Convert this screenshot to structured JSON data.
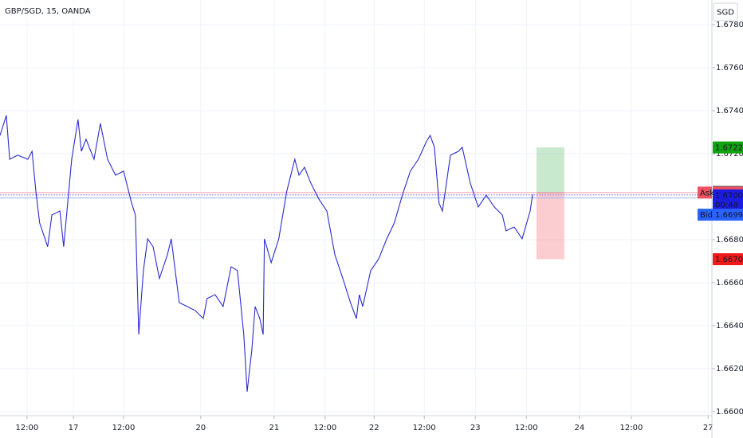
{
  "chart_data": {
    "type": "line",
    "title": "GBP/SGD, 15, OANDA",
    "currency": "SGD",
    "grid": true,
    "xlim": [
      0,
      168.8
    ],
    "xticks": [
      {
        "value": 6.4,
        "label": "12:00"
      },
      {
        "value": 17.4,
        "label": "17"
      },
      {
        "value": 29.3,
        "label": "12:00"
      },
      {
        "value": 47.6,
        "label": "20"
      },
      {
        "value": 65.0,
        "label": "21"
      },
      {
        "value": 77.1,
        "label": "12:00"
      },
      {
        "value": 88.7,
        "label": "22"
      },
      {
        "value": 100.6,
        "label": "12:00"
      },
      {
        "value": 112.7,
        "label": "23"
      },
      {
        "value": 124.8,
        "label": "12:00"
      },
      {
        "value": 137.4,
        "label": "24"
      },
      {
        "value": 149.7,
        "label": "12:00"
      },
      {
        "value": 167.9,
        "label": "27"
      }
    ],
    "ylim": [
      1.65981,
      1.67915
    ],
    "yticks": [
      {
        "value": 1.66,
        "label": "1.66000"
      },
      {
        "value": 1.662,
        "label": "1.66200"
      },
      {
        "value": 1.664,
        "label": "1.66400"
      },
      {
        "value": 1.666,
        "label": "1.66600"
      },
      {
        "value": 1.668,
        "label": "1.66800"
      },
      {
        "value": 1.67,
        "label": "1.67000"
      },
      {
        "value": 1.672,
        "label": "1.67200"
      },
      {
        "value": 1.674,
        "label": "1.67400"
      },
      {
        "value": 1.676,
        "label": "1.67600"
      },
      {
        "value": 1.678,
        "label": "1.67800"
      }
    ],
    "series": [
      {
        "color": "#2b2bd0",
        "x": [
          0.0,
          1.5,
          2.3,
          4.2,
          6.6,
          7.6,
          8.5,
          9.4,
          11.3,
          12.3,
          14.2,
          15.1,
          17.0,
          18.5,
          19.3,
          20.4,
          22.3,
          23.8,
          25.5,
          27.4,
          29.3,
          31.2,
          32.1,
          32.9,
          34.0,
          35.0,
          36.3,
          37.8,
          39.7,
          40.6,
          42.5,
          44.4,
          46.3,
          48.2,
          49.1,
          51.0,
          52.9,
          54.8,
          56.3,
          57.8,
          58.6,
          59.7,
          60.5,
          61.6,
          62.4,
          62.7,
          64.3,
          66.1,
          68.0,
          69.9,
          70.9,
          72.2,
          73.7,
          75.6,
          77.5,
          79.4,
          81.3,
          83.1,
          84.5,
          85.2,
          86.0,
          87.9,
          89.8,
          91.7,
          93.5,
          95.4,
          97.3,
          99.2,
          101.1,
          102.0,
          103.0,
          104.1,
          104.9,
          106.8,
          108.7,
          109.6,
          111.5,
          113.4,
          115.3,
          117.2,
          119.1,
          120.0,
          121.9,
          123.8,
          125.7,
          126.3
        ],
        "values": [
          1.67285,
          1.67378,
          1.67174,
          1.67193,
          1.67174,
          1.67211,
          1.67026,
          1.66878,
          1.66767,
          1.66915,
          1.66933,
          1.66767,
          1.67174,
          1.67359,
          1.67211,
          1.67267,
          1.67174,
          1.67341,
          1.67174,
          1.671,
          1.67119,
          1.6697,
          1.66915,
          1.66359,
          1.66656,
          1.66804,
          1.66767,
          1.66619,
          1.6673,
          1.66804,
          1.66507,
          1.66489,
          1.6647,
          1.66433,
          1.66526,
          1.66544,
          1.66489,
          1.66674,
          1.66656,
          1.66359,
          1.66093,
          1.66285,
          1.66489,
          1.66433,
          1.66359,
          1.66804,
          1.66693,
          1.66804,
          1.67026,
          1.67174,
          1.671,
          1.67137,
          1.67063,
          1.66989,
          1.66933,
          1.6673,
          1.66619,
          1.66507,
          1.66433,
          1.66544,
          1.66489,
          1.66656,
          1.66711,
          1.66804,
          1.66878,
          1.67007,
          1.67119,
          1.67174,
          1.67256,
          1.67285,
          1.6723,
          1.6697,
          1.66933,
          1.67193,
          1.67211,
          1.6723,
          1.67063,
          1.66952,
          1.67007,
          1.66952,
          1.66915,
          1.66841,
          1.66859,
          1.66804,
          1.66933,
          1.67011
        ]
      }
    ],
    "position": {
      "target": 1.67229,
      "stop": 1.66709,
      "x_start": 127.2,
      "x_end": 133.8
    },
    "high_label": 1.67022,
    "ask": {
      "label": "Ask",
      "value": 1.67019
    },
    "last": {
      "value": 1.67008,
      "countdown": "00:48"
    },
    "bid": {
      "label": "Bid",
      "value": 1.66994
    }
  }
}
